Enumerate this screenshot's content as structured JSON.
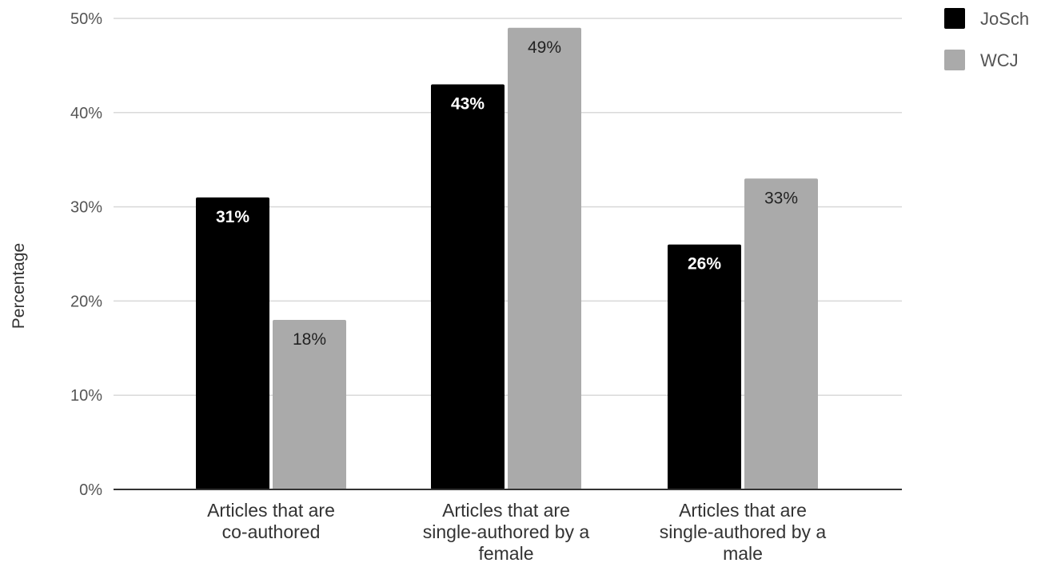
{
  "chart_data": {
    "type": "bar",
    "title": "",
    "xlabel": "",
    "ylabel": "Percentage",
    "ylim": [
      0,
      50
    ],
    "yticks": [
      0,
      10,
      20,
      30,
      40,
      50
    ],
    "ytick_suffix": "%",
    "categories": [
      [
        "Articles that are",
        "co-authored"
      ],
      [
        "Articles that are",
        "single-authored by a",
        "female"
      ],
      [
        "Articles that are",
        "single-authored by a",
        "male"
      ]
    ],
    "series": [
      {
        "name": "JoSch",
        "color": "#000000",
        "label_color": "#ffffff",
        "values": [
          31,
          43,
          26
        ],
        "labels": [
          "31%",
          "43%",
          "26%"
        ]
      },
      {
        "name": "WCJ",
        "color": "#aaaaaa",
        "label_color": "#222222",
        "values": [
          18,
          49,
          33
        ],
        "labels": [
          "18%",
          "49%",
          "33%"
        ]
      }
    ],
    "grid": true,
    "legend_position": "top-right"
  }
}
